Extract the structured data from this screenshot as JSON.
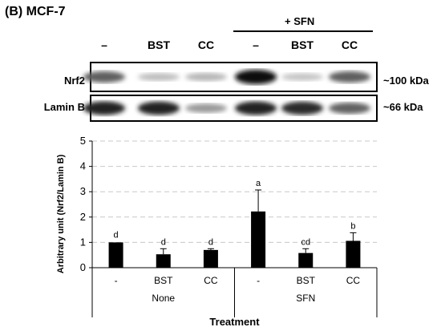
{
  "panel_title": "(B) MCF-7",
  "blot": {
    "lanes": [
      "–",
      "BST",
      "CC",
      "–",
      "BST",
      "CC"
    ],
    "treatment_label": "+ SFN",
    "rows": [
      {
        "name": "Nrf2",
        "size": "~100 kDa",
        "intensity": [
          0.62,
          0.18,
          0.22,
          1.0,
          0.15,
          0.62
        ]
      },
      {
        "name": "Lamin B",
        "size": "~66 kDa",
        "intensity": [
          0.9,
          0.88,
          0.35,
          0.9,
          0.85,
          0.6
        ]
      }
    ]
  },
  "chart_data": {
    "type": "bar",
    "categories": [
      "-",
      "BST",
      "CC",
      "-",
      "BST",
      "CC"
    ],
    "groups": [
      {
        "label": "None",
        "span": [
          0,
          2
        ]
      },
      {
        "label": "SFN",
        "span": [
          3,
          5
        ]
      }
    ],
    "values": [
      1.0,
      0.53,
      0.7,
      2.22,
      0.58,
      1.06
    ],
    "errors": [
      0.0,
      0.22,
      0.05,
      0.85,
      0.17,
      0.32
    ],
    "letters": [
      "d",
      "d",
      "d",
      "a",
      "cd",
      "b"
    ],
    "ylabel": "Arbitrary unit (Nrf2/Lamin B)",
    "xlabel": "Treatment",
    "ylim": [
      0,
      5
    ],
    "yticks": [
      "0",
      "1",
      "2",
      "3",
      "4",
      "5"
    ],
    "grid": true,
    "bar_color": "#000000",
    "grid_color": "#c8c8c8"
  }
}
